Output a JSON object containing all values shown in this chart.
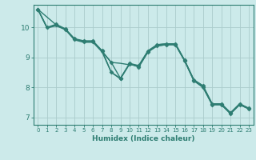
{
  "xlabel": "Humidex (Indice chaleur)",
  "bg_color": "#cceaea",
  "grid_color": "#aacccc",
  "line_color": "#2e7d72",
  "xlim": [
    -0.5,
    23.5
  ],
  "ylim": [
    6.75,
    10.75
  ],
  "xticks": [
    0,
    1,
    2,
    3,
    4,
    5,
    6,
    7,
    8,
    9,
    10,
    11,
    12,
    13,
    14,
    15,
    16,
    17,
    18,
    19,
    20,
    21,
    22,
    23
  ],
  "yticks": [
    7,
    8,
    9,
    10
  ],
  "series": [
    {
      "x": [
        0,
        1,
        2,
        3,
        4,
        5,
        6,
        7,
        8,
        9,
        10,
        11,
        12,
        13,
        14,
        15,
        16,
        17,
        18,
        19,
        20,
        21,
        22,
        23
      ],
      "y": [
        10.6,
        10.0,
        10.1,
        9.95,
        9.62,
        9.55,
        9.55,
        9.22,
        8.5,
        8.3,
        8.8,
        8.72,
        9.2,
        9.42,
        9.45,
        9.45,
        8.9,
        8.25,
        8.05,
        7.45,
        7.45,
        7.15,
        7.45,
        7.3
      ],
      "marker": "D",
      "markersize": 2.5,
      "linewidth": 1.0
    },
    {
      "x": [
        0,
        1,
        2,
        3,
        4,
        5,
        6,
        7,
        8,
        9,
        10,
        11,
        12,
        13,
        14,
        15,
        16,
        17,
        18,
        19,
        20,
        21,
        22,
        23
      ],
      "y": [
        10.6,
        9.98,
        10.08,
        9.93,
        9.6,
        9.53,
        9.53,
        9.2,
        8.83,
        8.8,
        8.75,
        8.73,
        9.22,
        9.42,
        9.45,
        9.45,
        8.9,
        8.25,
        8.05,
        7.45,
        7.45,
        7.15,
        7.45,
        7.3
      ],
      "marker": null,
      "markersize": 0,
      "linewidth": 1.0
    },
    {
      "x": [
        0,
        2,
        3,
        4,
        5,
        6,
        7,
        8,
        9,
        10,
        11,
        12,
        13,
        14,
        15,
        16,
        17,
        18,
        19,
        20,
        21,
        22,
        23
      ],
      "y": [
        10.6,
        10.08,
        9.93,
        9.6,
        9.53,
        9.53,
        9.2,
        8.83,
        8.3,
        8.78,
        8.68,
        9.18,
        9.38,
        9.42,
        9.42,
        8.88,
        8.22,
        8.0,
        7.42,
        7.42,
        7.12,
        7.42,
        7.28
      ],
      "marker": "D",
      "markersize": 2.5,
      "linewidth": 1.0
    },
    {
      "x": [
        0,
        1,
        2,
        3,
        4,
        5,
        6,
        7,
        8,
        9,
        10,
        11,
        12,
        13,
        14,
        15,
        16,
        17,
        18,
        19,
        20,
        21,
        22,
        23
      ],
      "y": [
        10.6,
        9.98,
        10.05,
        9.92,
        9.58,
        9.5,
        9.5,
        9.18,
        8.5,
        8.28,
        8.78,
        8.68,
        9.18,
        9.38,
        9.42,
        9.42,
        8.88,
        8.22,
        8.0,
        7.42,
        7.42,
        7.12,
        7.42,
        7.28
      ],
      "marker": null,
      "markersize": 0,
      "linewidth": 1.0
    }
  ]
}
